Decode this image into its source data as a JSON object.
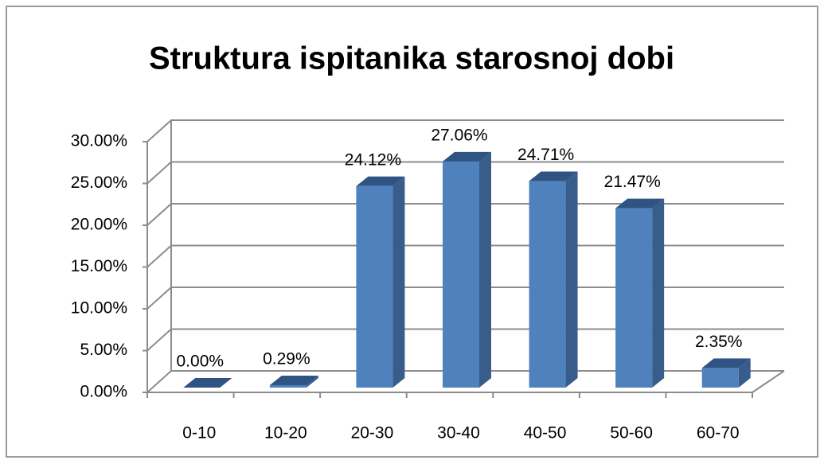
{
  "chart_data": {
    "type": "bar",
    "title": "Struktura ispitanika starosnoj dobi",
    "categories": [
      "0-10",
      "10-20",
      "20-30",
      "30-40",
      "40-50",
      "50-60",
      "60-70"
    ],
    "values": [
      0,
      0.29,
      24.12,
      27.06,
      24.71,
      21.47,
      2.35
    ],
    "value_labels": [
      "0.00%",
      "0.29%",
      "24.12%",
      "27.06%",
      "24.71%",
      "21.47%",
      "2.35%"
    ],
    "color": "#4f81bd",
    "ylim": [
      0,
      30
    ],
    "yticks": [
      {
        "value": 0,
        "label": "0.00%"
      },
      {
        "value": 5,
        "label": "5.00%"
      },
      {
        "value": 10,
        "label": "10.00%"
      },
      {
        "value": 15,
        "label": "15.00%"
      },
      {
        "value": 20,
        "label": "20.00%"
      },
      {
        "value": 25,
        "label": "25.00%"
      },
      {
        "value": 30,
        "label": "30.00%"
      }
    ],
    "grid": true
  }
}
